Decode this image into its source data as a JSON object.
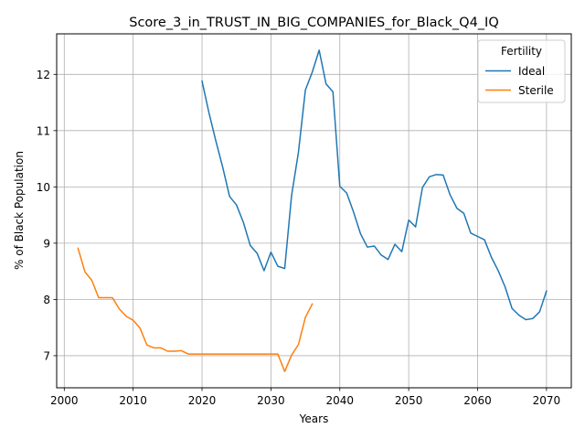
{
  "chart_data": {
    "type": "line",
    "title": "Score_3_in_TRUST_IN_BIG_COMPANIES_for_Black_Q4_IQ",
    "xlabel": "Years",
    "ylabel": "% of Black Population",
    "xlim": [
      1998.9,
      2073.6
    ],
    "ylim": [
      6.43,
      12.72
    ],
    "xticks": [
      2000,
      2010,
      2020,
      2030,
      2040,
      2050,
      2060,
      2070
    ],
    "yticks": [
      7,
      8,
      9,
      10,
      11,
      12
    ],
    "grid": true,
    "legend": {
      "title": "Fertility",
      "location": "top-right"
    },
    "series": [
      {
        "name": "Ideal",
        "color": "#1f77b4",
        "x": [
          2020,
          2021,
          2022,
          2023,
          2024,
          2025,
          2026,
          2027,
          2028,
          2029,
          2030,
          2031,
          2032,
          2033,
          2034,
          2035,
          2036,
          2037,
          2038,
          2039,
          2040,
          2041,
          2042,
          2043,
          2044,
          2045,
          2046,
          2047,
          2048,
          2049,
          2050,
          2051,
          2052,
          2053,
          2054,
          2055,
          2056,
          2057,
          2058,
          2059,
          2060,
          2061,
          2062,
          2063,
          2064,
          2065,
          2066,
          2067,
          2068,
          2069,
          2070
        ],
        "y": [
          11.88,
          11.32,
          10.82,
          10.35,
          9.83,
          9.68,
          9.37,
          8.96,
          8.82,
          8.51,
          8.84,
          8.59,
          8.55,
          9.85,
          10.62,
          11.72,
          12.04,
          12.43,
          11.83,
          11.69,
          10.01,
          9.89,
          9.55,
          9.17,
          8.93,
          8.95,
          8.79,
          8.71,
          8.98,
          8.85,
          9.41,
          9.29,
          9.99,
          10.18,
          10.22,
          10.21,
          9.86,
          9.62,
          9.53,
          9.18,
          9.12,
          9.06,
          8.75,
          8.51,
          8.22,
          7.84,
          7.72,
          7.64,
          7.66,
          7.78,
          8.15
        ]
      },
      {
        "name": "Sterile",
        "color": "#ff7f0e",
        "x": [
          2002,
          2003,
          2004,
          2005,
          2006,
          2007,
          2008,
          2009,
          2010,
          2011,
          2012,
          2013,
          2014,
          2015,
          2016,
          2017,
          2018,
          2019,
          2020,
          2021,
          2022,
          2023,
          2024,
          2025,
          2026,
          2027,
          2028,
          2029,
          2030,
          2031,
          2032,
          2033,
          2034,
          2035,
          2036
        ],
        "y": [
          8.91,
          8.49,
          8.34,
          8.03,
          8.03,
          8.03,
          7.83,
          7.7,
          7.63,
          7.49,
          7.19,
          7.14,
          7.14,
          7.08,
          7.08,
          7.09,
          7.03,
          7.03,
          7.03,
          7.03,
          7.03,
          7.03,
          7.03,
          7.03,
          7.03,
          7.03,
          7.03,
          7.03,
          7.03,
          7.03,
          6.72,
          7.01,
          7.2,
          7.68,
          7.92
        ]
      }
    ]
  }
}
